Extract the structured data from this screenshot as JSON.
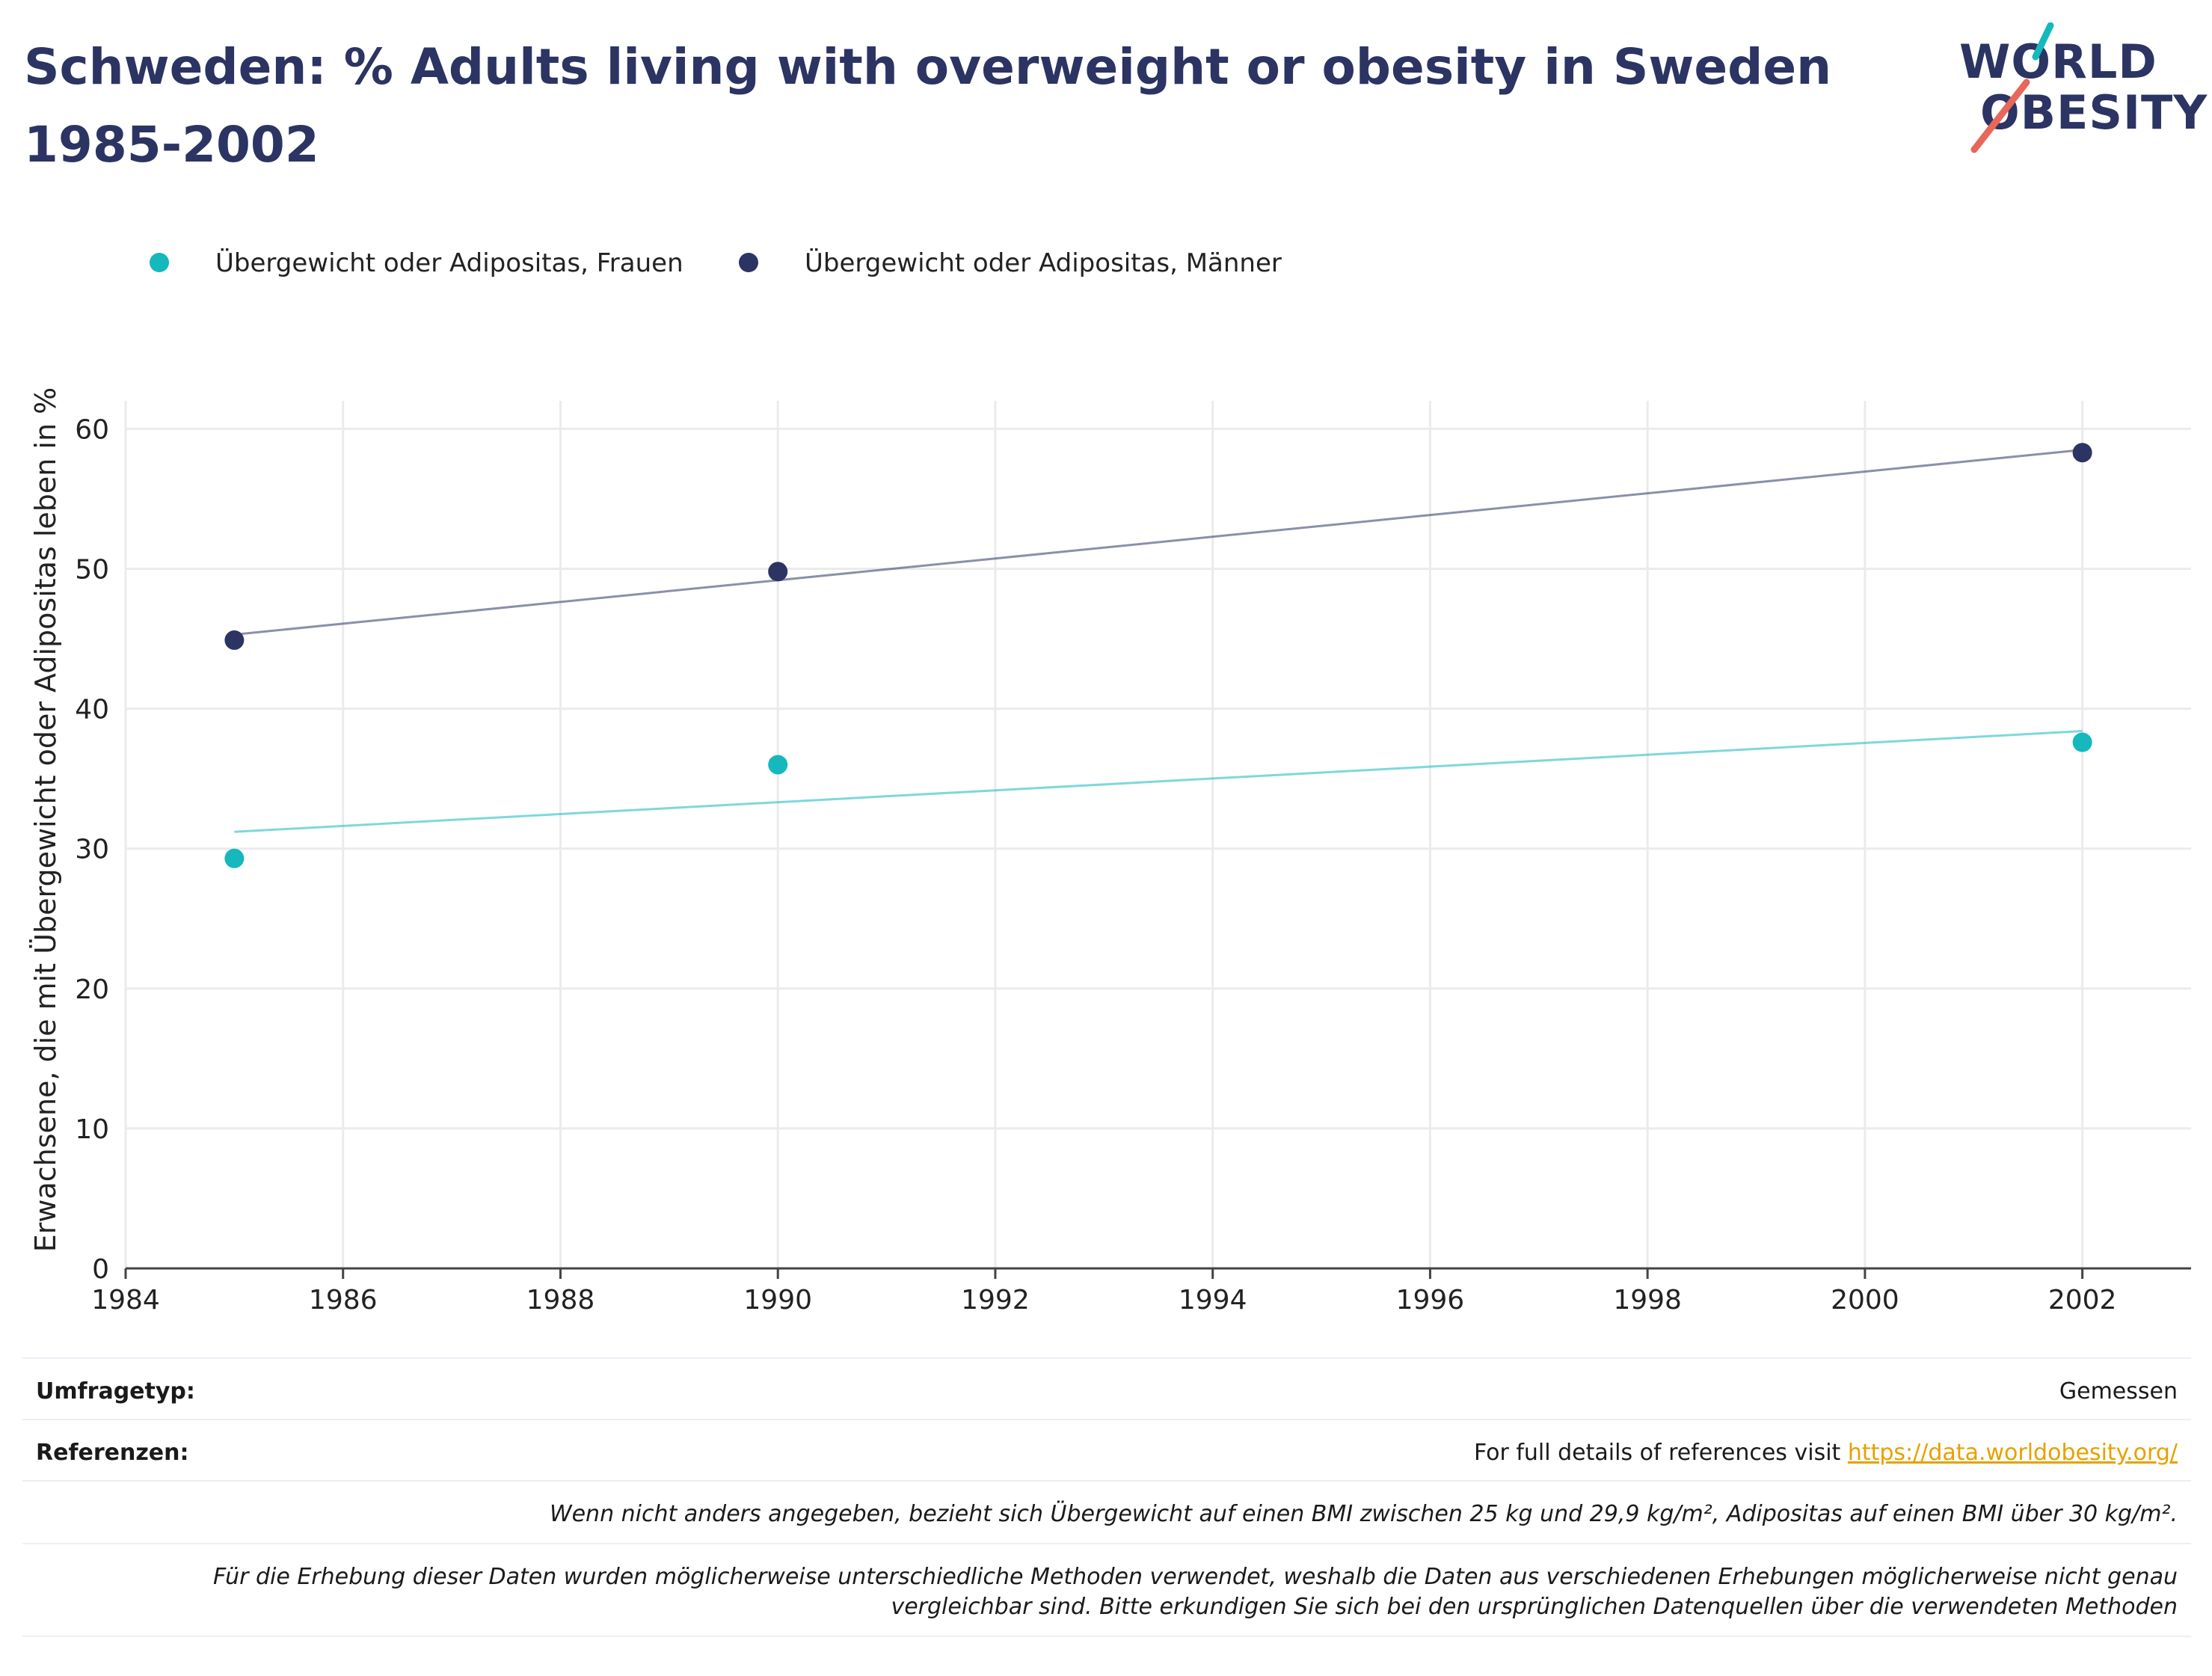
{
  "title": "Schweden: % Adults living with overweight or obesity in Sweden 1985-2002",
  "logo": {
    "line1": "WORLD",
    "line2": "OBESITY"
  },
  "colors": {
    "title": "#2b3462",
    "women": "#14b8bd",
    "men": "#2b3462",
    "grid": "#ebebeb",
    "link": "#e8a000"
  },
  "legend": [
    {
      "label": "Übergewicht oder Adipositas, Frauen",
      "color": "#14b8bd"
    },
    {
      "label": "Übergewicht oder Adipositas, Männer",
      "color": "#2b3462"
    }
  ],
  "chart_data": {
    "type": "scatter",
    "title": "Schweden: % Adults living with overweight or obesity in Sweden 1985-2002",
    "xlabel": "",
    "ylabel": "Erwachsene, die mit Übergewicht oder Adipositas leben in %",
    "xlim": [
      1984,
      2003
    ],
    "ylim": [
      0,
      62
    ],
    "xticks": [
      1984,
      1986,
      1988,
      1990,
      1992,
      1994,
      1996,
      1998,
      2000,
      2002
    ],
    "yticks": [
      0,
      10,
      20,
      30,
      40,
      50,
      60
    ],
    "grid": true,
    "legend_position": "top-left",
    "series": [
      {
        "name": "Übergewicht oder Adipositas, Frauen",
        "color": "#14b8bd",
        "points": [
          {
            "x": 1985,
            "y": 29.3
          },
          {
            "x": 1990,
            "y": 36.0
          },
          {
            "x": 2002,
            "y": 37.6
          }
        ],
        "trendline": [
          {
            "x": 1985,
            "y": 31.2
          },
          {
            "x": 2002,
            "y": 38.4
          }
        ]
      },
      {
        "name": "Übergewicht oder Adipositas, Männer",
        "color": "#2b3462",
        "points": [
          {
            "x": 1985,
            "y": 44.9
          },
          {
            "x": 1990,
            "y": 49.8
          },
          {
            "x": 2002,
            "y": 58.3
          }
        ],
        "trendline": [
          {
            "x": 1985,
            "y": 45.3
          },
          {
            "x": 2002,
            "y": 58.5
          }
        ]
      }
    ]
  },
  "footer": {
    "survey_type_label": "Umfragetyp:",
    "survey_type_value": "Gemessen",
    "references_label": "Referenzen:",
    "references_text": "For full details of references visit ",
    "references_link": "https://data.worldobesity.org/",
    "note1": "Wenn nicht anders angegeben, bezieht sich Übergewicht auf einen BMI zwischen 25 kg und 29,9 kg/m², Adipositas auf einen BMI über 30 kg/m².",
    "note2_line1": "Für die Erhebung dieser Daten wurden möglicherweise unterschiedliche Methoden verwendet, weshalb die Daten aus verschiedenen Erhebungen möglicherweise nicht genau",
    "note2_line2": "vergleichbar sind. Bitte erkundigen Sie sich bei den ursprünglichen Datenquellen über die verwendeten Methoden"
  }
}
